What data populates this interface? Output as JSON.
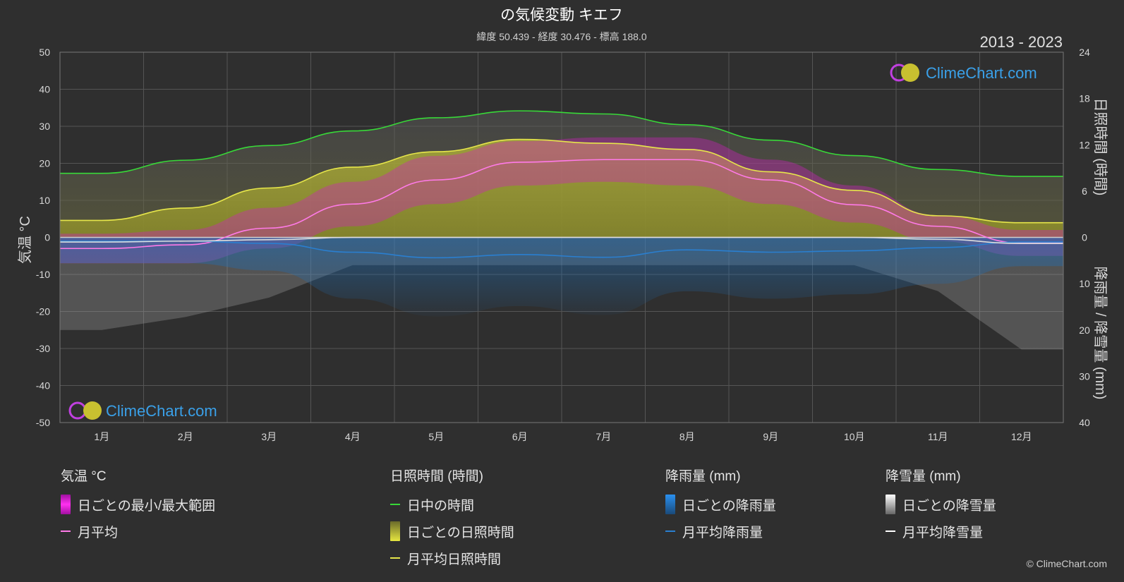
{
  "title": "の気候変動 キエフ",
  "subtitle": "緯度 50.439 - 経度 30.476 - 標高 188.0",
  "year_range": "2013 - 2023",
  "watermark": "ClimeChart.com",
  "copyright": "© ClimeChart.com",
  "colors": {
    "background": "#2f2f2f",
    "daylight": "#38d838",
    "sunshine_avg": "#e6e64a",
    "temp_avg": "#ff7ae8",
    "temp_range": "#d820c8",
    "sunshine_daily": "#a6a62e",
    "rain": "#2a7fd0",
    "snow": "#dddddd"
  },
  "chart_data": {
    "type": "line",
    "months": [
      "1月",
      "2月",
      "3月",
      "4月",
      "5月",
      "6月",
      "7月",
      "8月",
      "9月",
      "10月",
      "11月",
      "12月"
    ],
    "left_axis": {
      "label": "気温 °C",
      "range": [
        -50,
        50
      ],
      "ticks": [
        50,
        40,
        30,
        20,
        10,
        0,
        -10,
        -20,
        -30,
        -40,
        -50
      ]
    },
    "right_axis_top": {
      "label": "日照時間 (時間)",
      "range": [
        0,
        24
      ],
      "ticks": [
        24,
        18,
        12,
        6,
        0
      ]
    },
    "right_axis_bottom": {
      "label": "降雨量 / 降雪量 (mm)",
      "range": [
        0,
        40
      ],
      "ticks": [
        10,
        20,
        30,
        40
      ]
    },
    "series": [
      {
        "name": "日中の時間",
        "unit": "hours",
        "values": [
          8.3,
          10.0,
          11.9,
          13.8,
          15.5,
          16.4,
          16.0,
          14.6,
          12.6,
          10.6,
          8.8,
          7.9
        ]
      },
      {
        "name": "月平均日照時間",
        "unit": "hours",
        "values": [
          2.2,
          3.8,
          6.4,
          9.1,
          11.1,
          12.7,
          12.2,
          11.4,
          8.5,
          6.1,
          2.8,
          1.9
        ]
      },
      {
        "name": "月平均",
        "unit": "°C",
        "values": [
          -3.0,
          -2.0,
          2.5,
          9.0,
          15.5,
          20.3,
          21.0,
          21.0,
          15.5,
          8.8,
          3.0,
          -1.5
        ]
      },
      {
        "name": "月平均降雨量",
        "unit": "mm",
        "values": [
          0.8,
          0.8,
          1.3,
          3.2,
          4.4,
          3.7,
          4.3,
          2.7,
          3.2,
          2.9,
          2.2,
          1.0
        ]
      },
      {
        "name": "月平均降雪量",
        "unit": "mm",
        "values": [
          1.0,
          0.8,
          0.5,
          0.0,
          0.0,
          0.0,
          0.0,
          0.0,
          0.0,
          0.0,
          0.4,
          1.3
        ]
      }
    ],
    "daily_temp_range": {
      "min": [
        -7,
        -7,
        -3,
        3,
        9,
        14,
        15,
        14,
        9,
        4,
        -1,
        -5
      ],
      "max": [
        1,
        2,
        8,
        15,
        22,
        26,
        27,
        27,
        21,
        14,
        6,
        2
      ]
    },
    "grid": true
  },
  "legend": {
    "temp": {
      "title": "気温 °C",
      "items": [
        "日ごとの最小/最大範囲",
        "月平均"
      ]
    },
    "sun": {
      "title": "日照時間 (時間)",
      "items": [
        "日中の時間",
        "日ごとの日照時間",
        "月平均日照時間"
      ]
    },
    "rain": {
      "title": "降雨量 (mm)",
      "items": [
        "日ごとの降雨量",
        "月平均降雨量"
      ]
    },
    "snow": {
      "title": "降雪量 (mm)",
      "items": [
        "日ごとの降雪量",
        "月平均降雪量"
      ]
    }
  }
}
